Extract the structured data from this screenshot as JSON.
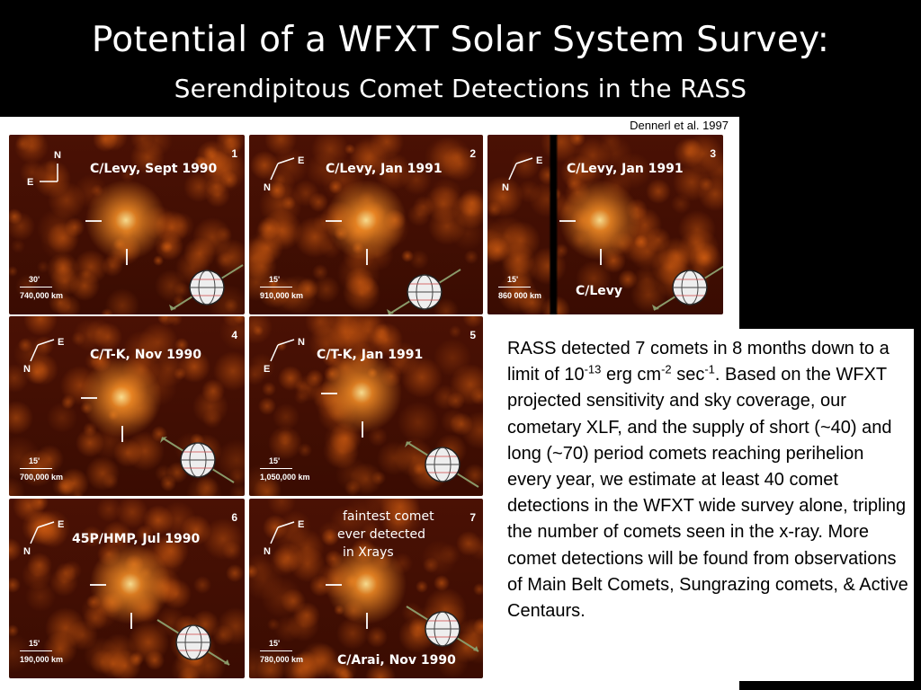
{
  "slide": {
    "title": "Potential of a WFXT Solar System Survey:",
    "subtitle": "Serendipitous Comet Detections in the RASS",
    "credit": "Dennerl et al. 1997"
  },
  "panels": [
    {
      "id": "1",
      "label": "C/Levy, Sept 1990",
      "scale_angle": "30'",
      "scale_dist": "740,000  km",
      "compass": [
        "N",
        "E"
      ]
    },
    {
      "id": "2",
      "label": "C/Levy, Jan 1991",
      "scale_angle": "15'",
      "scale_dist": "910,000  km",
      "compass": [
        "E",
        "N"
      ]
    },
    {
      "id": "3",
      "label": "C/Levy, Jan 1991",
      "scale_angle": "15'",
      "scale_dist": "860 000  km",
      "compass": [
        "E",
        "N"
      ],
      "footer_label": "C/Levy"
    },
    {
      "id": "4",
      "label": "C/T-K, Nov 1990",
      "scale_angle": "15'",
      "scale_dist": "700,000  km",
      "compass": [
        "E",
        "N"
      ]
    },
    {
      "id": "5",
      "label": "C/T-K, Jan 1991",
      "scale_angle": "15'",
      "scale_dist": "1,050,000  km",
      "compass": [
        "N",
        "E"
      ]
    },
    {
      "id": "6",
      "label": "45P/HMP, Jul 1990",
      "scale_angle": "15'",
      "scale_dist": "190,000  km",
      "compass": [
        "E",
        "N"
      ]
    },
    {
      "id": "7",
      "label": "C/Arai, Nov 1990",
      "scale_angle": "15'",
      "scale_dist": "780,000  km",
      "compass": [
        "E",
        "N"
      ],
      "note": [
        "faintest comet",
        "ever detected",
        "in Xrays"
      ]
    }
  ],
  "body": {
    "line1_a": "RASS detected 7 comets in 8 months",
    "line2_a": "down to a limit of  10",
    "exp1": "-13",
    "line2_b": " erg cm",
    "exp2": "-2",
    "line2_c": " sec",
    "exp3": "-1",
    "line2_d": ".",
    "rest": "Based on the WFXT projected sensitivity and sky coverage, our cometary XLF, and the supply of short (~40) and long (~70) period comets reaching perihelion every year, we estimate at least 40 comet detections in the WFXT wide survey alone, tripling the number of comets seen in the x-ray. More comet detections will be found from observations of Main Belt Comets, Sungrazing comets, & Active Centaurs."
  },
  "colors": {
    "background": "#000000",
    "panel_dark": "#3a0c02",
    "panel_bright": "#ff9a2a",
    "text": "#ffffff"
  }
}
